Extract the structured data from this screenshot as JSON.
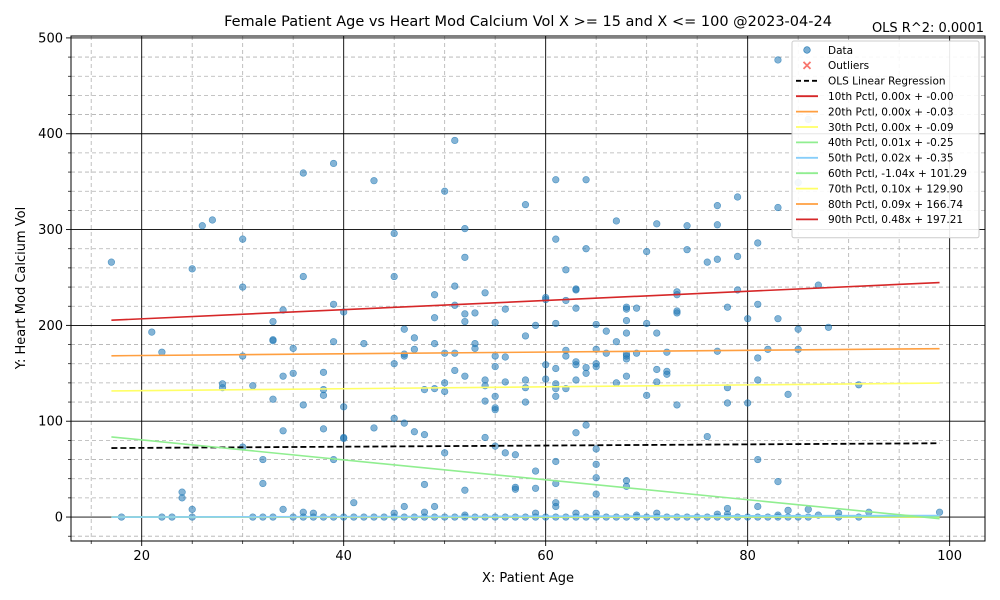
{
  "chart_data": {
    "type": "scatter",
    "title": "Female Patient Age vs Heart Mod Calcium Vol X >= 15 and X <=  100 @2023-04-24",
    "xlabel": "X: Patient Age",
    "ylabel": "Y: Heart Mod Calcium Vol",
    "annotation": "OLS R^2: 0.0001",
    "xlim": [
      13,
      103.5
    ],
    "ylim": [
      -25,
      502
    ],
    "x_ticks": [
      20,
      40,
      60,
      80,
      100
    ],
    "y_ticks": [
      0,
      100,
      200,
      300,
      400,
      500
    ],
    "grid": true,
    "legend_position": "top-right",
    "colors": {
      "data": "#1f77b4",
      "outliers": "#f8766d"
    },
    "legend": [
      {
        "label": "Data",
        "kind": "point",
        "color": "#1f77b4"
      },
      {
        "label": "Outliers",
        "kind": "cross",
        "color": "#f8766d"
      },
      {
        "label": "OLS Linear Regression",
        "kind": "dash",
        "color": "#000000"
      },
      {
        "label": "10th Pctl, 0.00x + -0.00",
        "kind": "line",
        "color": "#d62728"
      },
      {
        "label": "20th Pctl, 0.00x + -0.03",
        "kind": "line",
        "color": "#ff9f40"
      },
      {
        "label": "30th Pctl, 0.00x + -0.09",
        "kind": "line",
        "color": "#ffff66"
      },
      {
        "label": "40th Pctl, 0.01x + -0.25",
        "kind": "line",
        "color": "#90ee90"
      },
      {
        "label": "50th Pctl, 0.02x + -0.35",
        "kind": "line",
        "color": "#87cefa"
      },
      {
        "label": "60th Pctl, -1.04x + 101.29",
        "kind": "line",
        "color": "#90ee90"
      },
      {
        "label": "70th Pctl, 0.10x + 129.90",
        "kind": "line",
        "color": "#ffff66"
      },
      {
        "label": "80th Pctl, 0.09x + 166.74",
        "kind": "line",
        "color": "#ff9f40"
      },
      {
        "label": "90th Pctl, 0.48x + 197.21",
        "kind": "line",
        "color": "#d62728"
      }
    ],
    "lines": [
      {
        "name": "OLS Linear Regression",
        "x": [
          17,
          99
        ],
        "y": [
          72,
          77
        ],
        "color": "#000000",
        "dash": true
      },
      {
        "name": "10th Pctl",
        "x": [
          17,
          99
        ],
        "y": [
          0,
          0
        ],
        "color": "#d62728"
      },
      {
        "name": "20th Pctl",
        "x": [
          17,
          99
        ],
        "y": [
          0,
          0
        ],
        "color": "#ff9f40"
      },
      {
        "name": "30th Pctl",
        "x": [
          17,
          99
        ],
        "y": [
          0,
          0
        ],
        "color": "#ffff66"
      },
      {
        "name": "40th Pctl",
        "x": [
          17,
          99
        ],
        "y": [
          0,
          0.5
        ],
        "color": "#90ee90"
      },
      {
        "name": "50th Pctl",
        "x": [
          17,
          99
        ],
        "y": [
          0,
          1.6
        ],
        "color": "#87cefa"
      },
      {
        "name": "60th Pctl",
        "x": [
          17,
          99
        ],
        "y": [
          83.6,
          -1.7
        ],
        "color": "#90ee90"
      },
      {
        "name": "70th Pctl",
        "x": [
          17,
          99
        ],
        "y": [
          131.6,
          139.8
        ],
        "color": "#ffff66"
      },
      {
        "name": "80th Pctl",
        "x": [
          17,
          99
        ],
        "y": [
          168.3,
          175.7
        ],
        "color": "#ff9f40"
      },
      {
        "name": "90th Pctl",
        "x": [
          17,
          99
        ],
        "y": [
          205.4,
          244.7
        ],
        "color": "#d62728"
      }
    ],
    "points": [
      [
        17,
        266
      ],
      [
        18,
        0
      ],
      [
        21,
        193
      ],
      [
        22,
        172
      ],
      [
        22,
        0
      ],
      [
        23,
        0
      ],
      [
        24,
        26
      ],
      [
        24,
        20
      ],
      [
        25,
        259
      ],
      [
        25,
        8
      ],
      [
        25,
        0
      ],
      [
        26,
        304
      ],
      [
        27,
        310
      ],
      [
        28,
        139
      ],
      [
        28,
        135
      ],
      [
        30,
        290
      ],
      [
        30,
        240
      ],
      [
        30,
        168
      ],
      [
        30,
        73
      ],
      [
        31,
        137
      ],
      [
        31,
        0
      ],
      [
        32,
        60
      ],
      [
        32,
        35
      ],
      [
        32,
        0
      ],
      [
        33,
        204
      ],
      [
        33,
        185
      ],
      [
        33,
        184
      ],
      [
        33,
        123
      ],
      [
        33,
        0
      ],
      [
        34,
        216
      ],
      [
        34,
        147
      ],
      [
        34,
        90
      ],
      [
        34,
        8
      ],
      [
        35,
        176
      ],
      [
        35,
        150
      ],
      [
        35,
        0
      ],
      [
        36,
        359
      ],
      [
        36,
        251
      ],
      [
        36,
        117
      ],
      [
        36,
        5
      ],
      [
        36,
        0
      ],
      [
        37,
        4
      ],
      [
        37,
        0
      ],
      [
        38,
        151
      ],
      [
        38,
        133
      ],
      [
        38,
        127
      ],
      [
        38,
        92
      ],
      [
        38,
        0
      ],
      [
        39,
        369
      ],
      [
        39,
        222
      ],
      [
        39,
        183
      ],
      [
        39,
        60
      ],
      [
        39,
        0
      ],
      [
        40,
        214
      ],
      [
        40,
        115
      ],
      [
        40,
        83
      ],
      [
        40,
        82
      ],
      [
        40,
        0
      ],
      [
        41,
        15
      ],
      [
        41,
        0
      ],
      [
        42,
        181
      ],
      [
        42,
        0
      ],
      [
        43,
        351
      ],
      [
        43,
        93
      ],
      [
        43,
        0
      ],
      [
        44,
        0
      ],
      [
        45,
        296
      ],
      [
        45,
        251
      ],
      [
        45,
        160
      ],
      [
        45,
        103
      ],
      [
        45,
        4
      ],
      [
        45,
        0
      ],
      [
        46,
        196
      ],
      [
        46,
        170
      ],
      [
        46,
        168
      ],
      [
        46,
        98
      ],
      [
        46,
        11
      ],
      [
        46,
        0
      ],
      [
        47,
        187
      ],
      [
        47,
        175
      ],
      [
        47,
        89
      ],
      [
        47,
        0
      ],
      [
        48,
        133
      ],
      [
        48,
        86
      ],
      [
        48,
        34
      ],
      [
        48,
        5
      ],
      [
        48,
        0
      ],
      [
        49,
        232
      ],
      [
        49,
        208
      ],
      [
        49,
        181
      ],
      [
        49,
        134
      ],
      [
        49,
        11
      ],
      [
        49,
        0
      ],
      [
        50,
        340
      ],
      [
        50,
        171
      ],
      [
        50,
        140
      ],
      [
        50,
        131
      ],
      [
        50,
        67
      ],
      [
        50,
        0
      ],
      [
        51,
        393
      ],
      [
        51,
        241
      ],
      [
        51,
        221
      ],
      [
        51,
        171
      ],
      [
        51,
        153
      ],
      [
        51,
        0
      ],
      [
        52,
        301
      ],
      [
        52,
        271
      ],
      [
        52,
        212
      ],
      [
        52,
        204
      ],
      [
        52,
        147
      ],
      [
        52,
        28
      ],
      [
        52,
        2
      ],
      [
        52,
        0
      ],
      [
        53,
        213
      ],
      [
        53,
        181
      ],
      [
        53,
        176
      ],
      [
        53,
        0
      ],
      [
        54,
        234
      ],
      [
        54,
        143
      ],
      [
        54,
        137
      ],
      [
        54,
        121
      ],
      [
        54,
        83
      ],
      [
        54,
        0
      ],
      [
        55,
        203
      ],
      [
        55,
        168
      ],
      [
        55,
        157
      ],
      [
        55,
        126
      ],
      [
        55,
        114
      ],
      [
        55,
        112
      ],
      [
        55,
        74
      ],
      [
        55,
        0
      ],
      [
        56,
        217
      ],
      [
        56,
        167
      ],
      [
        56,
        141
      ],
      [
        56,
        67
      ],
      [
        56,
        0
      ],
      [
        57,
        65
      ],
      [
        57,
        31
      ],
      [
        57,
        29
      ],
      [
        57,
        0
      ],
      [
        58,
        326
      ],
      [
        58,
        189
      ],
      [
        58,
        143
      ],
      [
        58,
        135
      ],
      [
        58,
        120
      ],
      [
        58,
        0
      ],
      [
        59,
        200
      ],
      [
        59,
        48
      ],
      [
        59,
        30
      ],
      [
        59,
        4
      ],
      [
        59,
        0
      ],
      [
        60,
        229
      ],
      [
        60,
        227
      ],
      [
        60,
        159
      ],
      [
        60,
        144
      ],
      [
        60,
        0
      ],
      [
        61,
        352
      ],
      [
        61,
        290
      ],
      [
        61,
        202
      ],
      [
        61,
        155
      ],
      [
        61,
        139
      ],
      [
        61,
        134
      ],
      [
        61,
        126
      ],
      [
        61,
        58
      ],
      [
        61,
        35
      ],
      [
        61,
        15
      ],
      [
        61,
        11
      ],
      [
        61,
        0
      ],
      [
        62,
        258
      ],
      [
        62,
        226
      ],
      [
        62,
        174
      ],
      [
        62,
        168
      ],
      [
        62,
        134
      ],
      [
        62,
        0
      ],
      [
        63,
        238
      ],
      [
        63,
        237
      ],
      [
        63,
        218
      ],
      [
        63,
        162
      ],
      [
        63,
        159
      ],
      [
        63,
        143
      ],
      [
        63,
        88
      ],
      [
        63,
        4
      ],
      [
        63,
        0
      ],
      [
        64,
        352
      ],
      [
        64,
        280
      ],
      [
        64,
        156
      ],
      [
        64,
        150
      ],
      [
        64,
        96
      ],
      [
        64,
        0
      ],
      [
        65,
        201
      ],
      [
        65,
        175
      ],
      [
        65,
        160
      ],
      [
        65,
        157
      ],
      [
        65,
        71
      ],
      [
        65,
        55
      ],
      [
        65,
        41
      ],
      [
        65,
        24
      ],
      [
        65,
        4
      ],
      [
        65,
        0
      ],
      [
        66,
        194
      ],
      [
        66,
        171
      ],
      [
        66,
        0
      ],
      [
        67,
        309
      ],
      [
        67,
        183
      ],
      [
        67,
        140
      ],
      [
        67,
        0
      ],
      [
        68,
        219
      ],
      [
        68,
        217
      ],
      [
        68,
        205
      ],
      [
        68,
        192
      ],
      [
        68,
        170
      ],
      [
        68,
        168
      ],
      [
        68,
        165
      ],
      [
        68,
        147
      ],
      [
        68,
        38
      ],
      [
        68,
        32
      ],
      [
        68,
        0
      ],
      [
        69,
        218
      ],
      [
        69,
        171
      ],
      [
        69,
        2
      ],
      [
        69,
        0
      ],
      [
        70,
        277
      ],
      [
        70,
        202
      ],
      [
        70,
        127
      ],
      [
        70,
        0
      ],
      [
        71,
        306
      ],
      [
        71,
        192
      ],
      [
        71,
        154
      ],
      [
        71,
        141
      ],
      [
        71,
        4
      ],
      [
        71,
        0
      ],
      [
        72,
        172
      ],
      [
        72,
        152
      ],
      [
        72,
        149
      ],
      [
        72,
        0
      ],
      [
        73,
        235
      ],
      [
        73,
        232
      ],
      [
        73,
        215
      ],
      [
        73,
        213
      ],
      [
        73,
        117
      ],
      [
        73,
        0
      ],
      [
        74,
        304
      ],
      [
        74,
        279
      ],
      [
        74,
        0
      ],
      [
        75,
        0
      ],
      [
        76,
        266
      ],
      [
        76,
        84
      ],
      [
        76,
        0
      ],
      [
        77,
        325
      ],
      [
        77,
        305
      ],
      [
        77,
        269
      ],
      [
        77,
        173
      ],
      [
        77,
        3
      ],
      [
        77,
        0
      ],
      [
        78,
        219
      ],
      [
        78,
        135
      ],
      [
        78,
        119
      ],
      [
        78,
        9
      ],
      [
        78,
        3
      ],
      [
        78,
        0
      ],
      [
        79,
        334
      ],
      [
        79,
        272
      ],
      [
        79,
        237
      ],
      [
        79,
        0
      ],
      [
        80,
        207
      ],
      [
        80,
        119
      ],
      [
        80,
        0
      ],
      [
        81,
        286
      ],
      [
        81,
        222
      ],
      [
        81,
        166
      ],
      [
        81,
        143
      ],
      [
        81,
        60
      ],
      [
        81,
        11
      ],
      [
        81,
        0
      ],
      [
        82,
        175
      ],
      [
        82,
        0
      ],
      [
        83,
        477
      ],
      [
        83,
        323
      ],
      [
        83,
        207
      ],
      [
        83,
        37
      ],
      [
        83,
        2
      ],
      [
        83,
        0
      ],
      [
        84,
        128
      ],
      [
        84,
        7
      ],
      [
        84,
        0
      ],
      [
        85,
        349
      ],
      [
        85,
        196
      ],
      [
        85,
        175
      ],
      [
        85,
        0
      ],
      [
        86,
        415
      ],
      [
        86,
        8
      ],
      [
        86,
        0
      ],
      [
        87,
        242
      ],
      [
        87,
        2
      ],
      [
        88,
        198
      ],
      [
        89,
        4
      ],
      [
        89,
        0
      ],
      [
        91,
        138
      ],
      [
        91,
        0
      ],
      [
        92,
        5
      ],
      [
        99,
        5
      ]
    ]
  }
}
